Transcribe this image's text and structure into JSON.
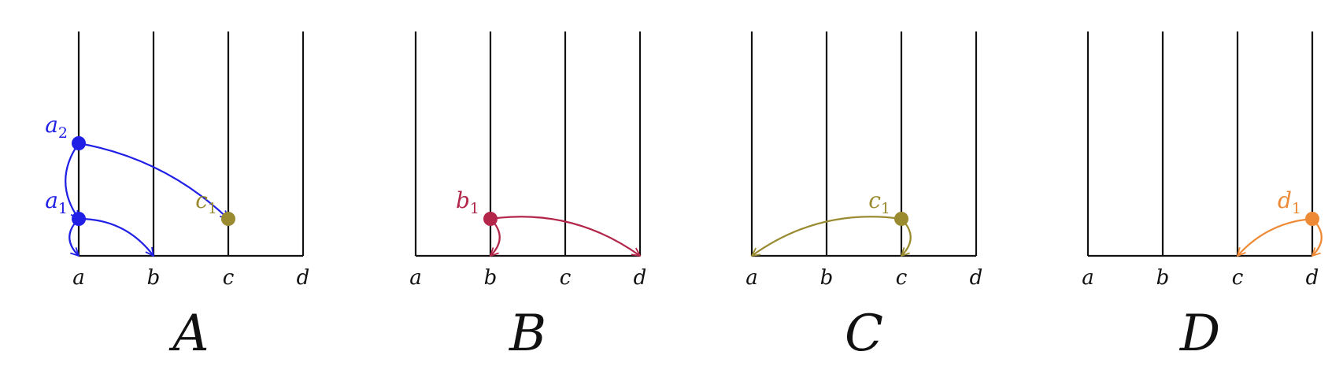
{
  "colors": {
    "blue": "#1f1fe6",
    "crimson": "#b3264a",
    "olive": "#9a8a30",
    "orange": "#ee8a36",
    "axis": "#111111"
  },
  "panels": [
    {
      "title": "A",
      "axis_labels": [
        "a",
        "b",
        "c",
        "d"
      ],
      "points": [
        {
          "base": "a",
          "sub": "2",
          "col": 0,
          "level": 2,
          "color": "blue"
        },
        {
          "base": "a",
          "sub": "1",
          "col": 0,
          "level": 1,
          "color": "blue"
        },
        {
          "base": "c",
          "sub": "1",
          "col": 2,
          "level": 1,
          "color": "olive"
        }
      ],
      "arrows": [
        {
          "from": [
            0,
            2
          ],
          "to": [
            0,
            1
          ],
          "bend": 0.35,
          "color": "blue"
        },
        {
          "from": [
            0,
            2
          ],
          "to": [
            2,
            1
          ],
          "bend": -0.15,
          "color": "blue"
        },
        {
          "from": [
            0,
            1
          ],
          "to": [
            0,
            0
          ],
          "bend": 0.5,
          "color": "blue"
        },
        {
          "from": [
            0,
            1
          ],
          "to": [
            1,
            0
          ],
          "bend": -0.25,
          "color": "blue"
        }
      ]
    },
    {
      "title": "B",
      "axis_labels": [
        "a",
        "b",
        "c",
        "d"
      ],
      "points": [
        {
          "base": "b",
          "sub": "1",
          "col": 1,
          "level": 1,
          "color": "crimson"
        }
      ],
      "arrows": [
        {
          "from": [
            1,
            1
          ],
          "to": [
            1,
            0
          ],
          "bend": -0.5,
          "color": "crimson"
        },
        {
          "from": [
            1,
            1
          ],
          "to": [
            3,
            0
          ],
          "bend": -0.2,
          "color": "crimson"
        }
      ]
    },
    {
      "title": "C",
      "axis_labels": [
        "a",
        "b",
        "c",
        "d"
      ],
      "points": [
        {
          "base": "c",
          "sub": "1",
          "col": 2,
          "level": 1,
          "color": "olive"
        }
      ],
      "arrows": [
        {
          "from": [
            2,
            1
          ],
          "to": [
            0,
            0
          ],
          "bend": 0.2,
          "color": "olive"
        },
        {
          "from": [
            2,
            1
          ],
          "to": [
            2,
            0
          ],
          "bend": -0.5,
          "color": "olive"
        }
      ]
    },
    {
      "title": "D",
      "axis_labels": [
        "a",
        "b",
        "c",
        "d"
      ],
      "points": [
        {
          "base": "d",
          "sub": "1",
          "col": 3,
          "level": 1,
          "color": "orange"
        }
      ],
      "arrows": [
        {
          "from": [
            3,
            1
          ],
          "to": [
            2,
            0
          ],
          "bend": 0.2,
          "color": "orange"
        },
        {
          "from": [
            3,
            1
          ],
          "to": [
            3,
            0
          ],
          "bend": -0.5,
          "color": "orange"
        }
      ]
    }
  ]
}
